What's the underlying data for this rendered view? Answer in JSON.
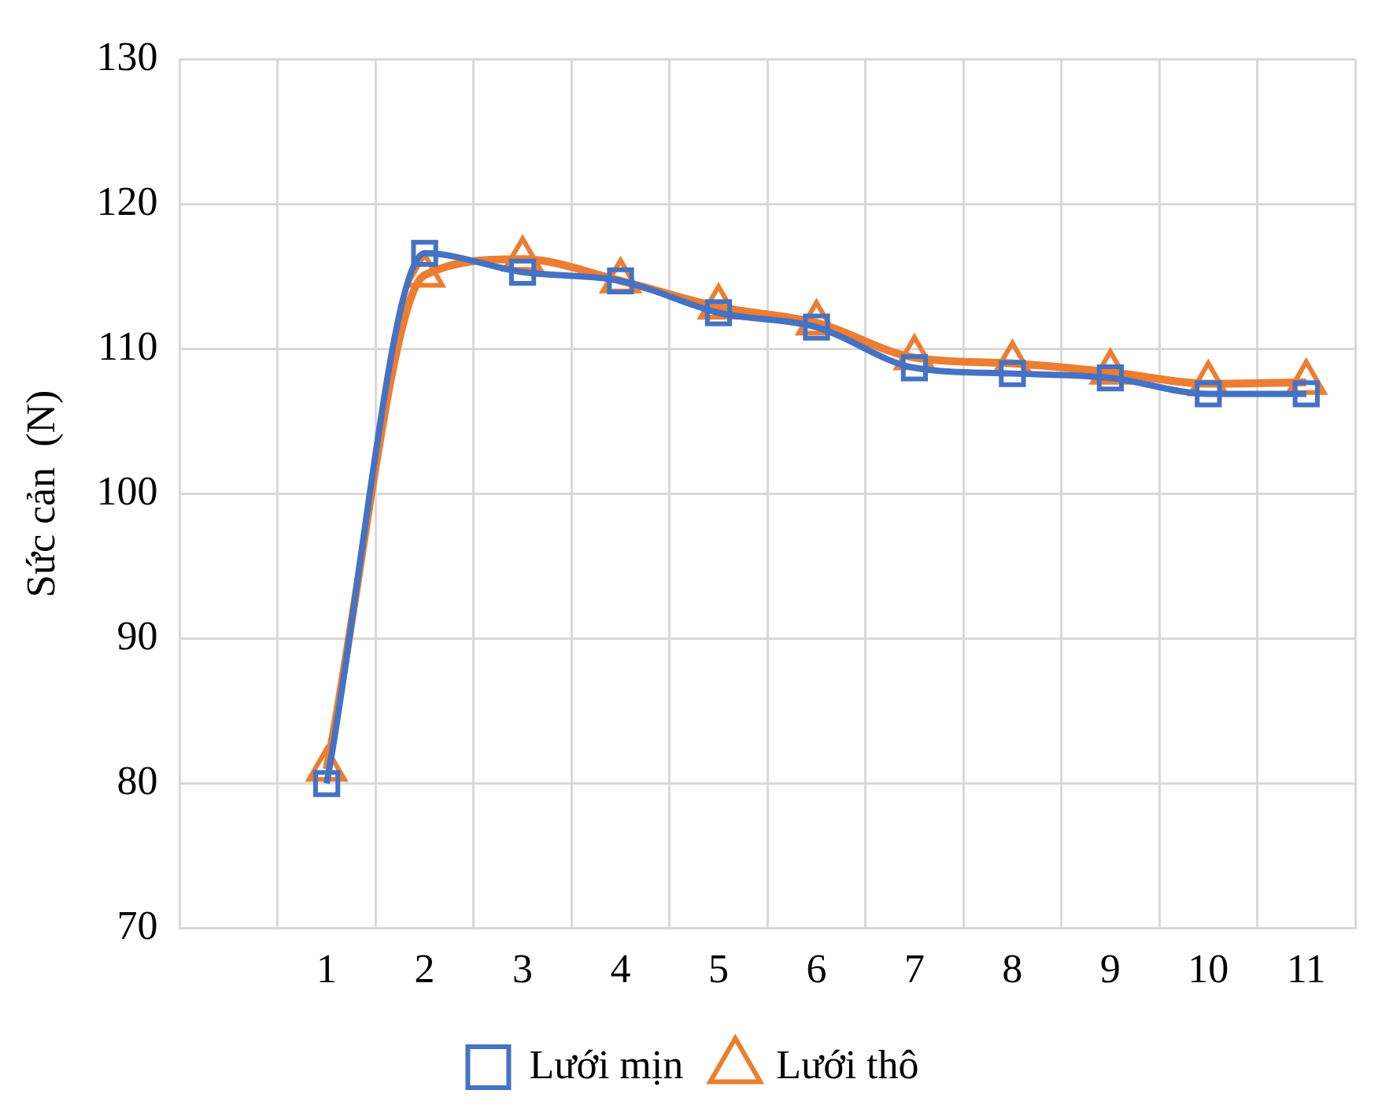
{
  "chart_data": {
    "type": "line",
    "ylabel": "Sức cản  (N)",
    "categories": [
      null,
      "1",
      "2",
      "3",
      "4",
      "5",
      "6",
      "7",
      "8",
      "9",
      "10",
      "11"
    ],
    "series": [
      {
        "name": "Lưới mịn",
        "color": "#4472c4",
        "marker": "square",
        "values": [
          null,
          80,
          116.6,
          115.3,
          114.7,
          112.5,
          111.5,
          108.7,
          108.3,
          108.0,
          106.9,
          106.9
        ]
      },
      {
        "name": "Lưới thô",
        "color": "#ed7d31",
        "marker": "triangle",
        "values": [
          null,
          81,
          115.1,
          116.2,
          114.7,
          112.9,
          111.8,
          109.4,
          109.0,
          108.4,
          107.6,
          107.7
        ]
      }
    ],
    "ylim": [
      70,
      130
    ],
    "yticks": [
      70,
      80,
      90,
      100,
      110,
      120,
      130
    ],
    "grid": true,
    "legend": "bottom",
    "line_style": "solid"
  }
}
